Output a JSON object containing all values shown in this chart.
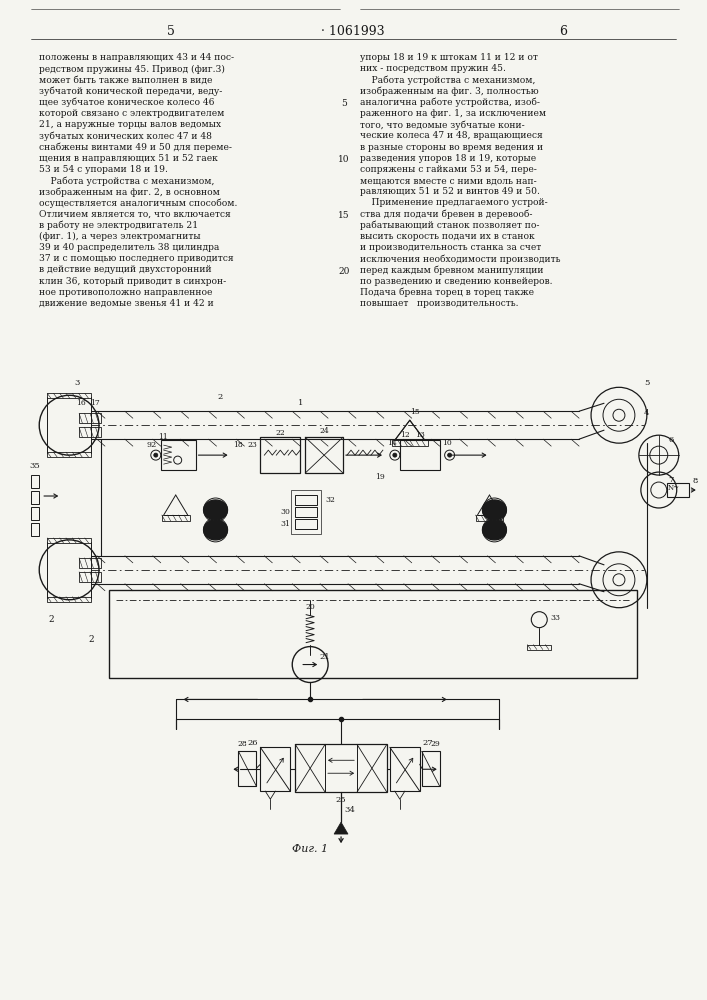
{
  "page_number_left": "5",
  "page_number_right": "6",
  "patent_number": "1061993",
  "background_color": "#f5f5f0",
  "text_color": "#1a1a1a",
  "line_color": "#1a1a1a",
  "figsize": [
    7.07,
    10.0
  ],
  "dpi": 100,
  "text_left_col": [
    "положены в направляющих 43 и 44 пос-",
    "редством пружины 45. Привод (фиг.3)",
    "может быть также выполнен в виде",
    "зубчатой конической передачи, веду-",
    "щее зубчатое коническое колесо 46",
    "которой связано с электродвигателем",
    "21, а наружные торцы валов ведомых",
    "зубчатых конических колес 47 и 48",
    "снабжены винтами 49 и 50 для переме-",
    "щения в направляющих 51 и 52 гаек",
    "53 и 54 с упорами 18 и 19.",
    "    Работа устройства с механизмом,",
    "изображенным на фиг. 2, в основном",
    "осуществляется аналогичным способом.",
    "Отличием является то, что включается",
    "в работу не электродвигатель 21",
    "(фиг. 1), а через электромагниты",
    "39 и 40 распределитель 38 цилиндра",
    "37 и с помощью последнего приводится",
    "в действие ведущий двухсторонний",
    "клин 36, который приводит в синхрон-",
    "ное противоположно направленное",
    "движение ведомые звенья 41 и 42 и"
  ],
  "text_right_col": [
    "упоры 18 и 19 к штокам 11 и 12 и от",
    "них - посредством пружин 45.",
    "    Работа устройства с механизмом,",
    "изображенным на фиг. 3, полностью",
    "аналогична работе устройства, изоб-",
    "раженного на фиг. 1, за исключением",
    "того, что ведомые зубчатые кони-",
    "ческие колеса 47 и 48, вращающиеся",
    "в разные стороны во время ведения и",
    "разведения упоров 18 и 19, которые",
    "сопряжены с гайками 53 и 54, пере-",
    "мещаются вместе с ними вдоль нап-",
    "равляющих 51 и 52 и винтов 49 и 50.",
    "    Применение предлагаемого устрой-",
    "ства для подачи бревен в деревооб-",
    "рабатывающий станок позволяет по-",
    "высить скорость подачи их в станок",
    "и производительность станка за счет",
    "исключения необходимости производить",
    "перед каждым бревном манипуляции",
    "по разведению и сведению конвейеров.",
    "Подача бревна торец в торец также",
    "повышает   производительность."
  ],
  "fig_label": "Фиг. 1"
}
